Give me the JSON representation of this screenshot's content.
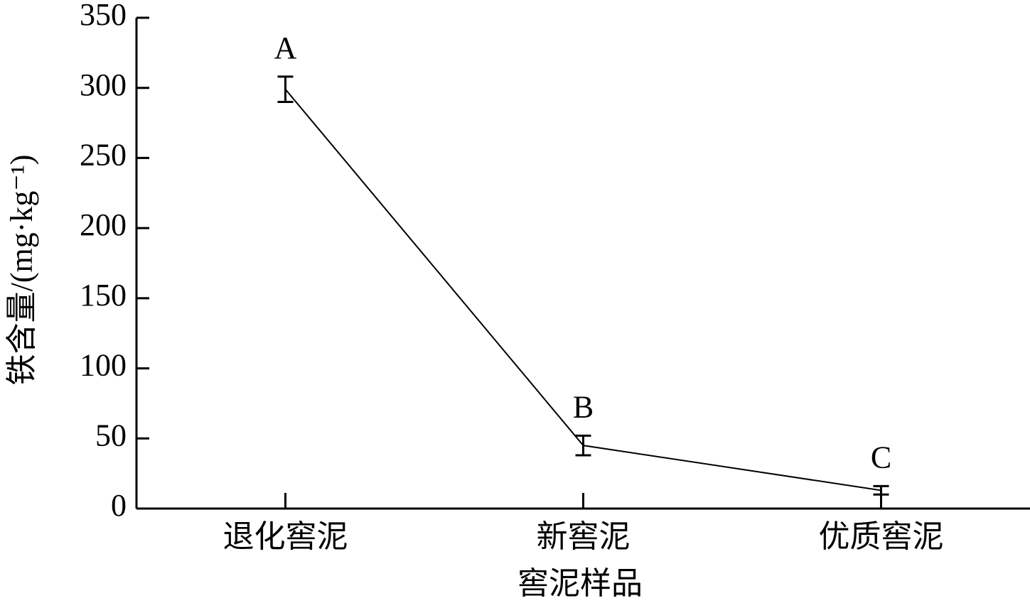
{
  "chart_data": {
    "type": "line",
    "x_label": "窖泥样品",
    "y_label": "铁含量/(mg·kg⁻¹)",
    "categories": [
      "退化窖泥",
      "新窖泥",
      "优质窖泥"
    ],
    "values": [
      299,
      45,
      13
    ],
    "errors": [
      9,
      7,
      3
    ],
    "sig_labels": [
      "A",
      "B",
      "C"
    ],
    "color": "#000000",
    "ylim": [
      0,
      350
    ],
    "yticks": [
      0,
      50,
      100,
      150,
      200,
      250,
      300,
      350
    ]
  }
}
